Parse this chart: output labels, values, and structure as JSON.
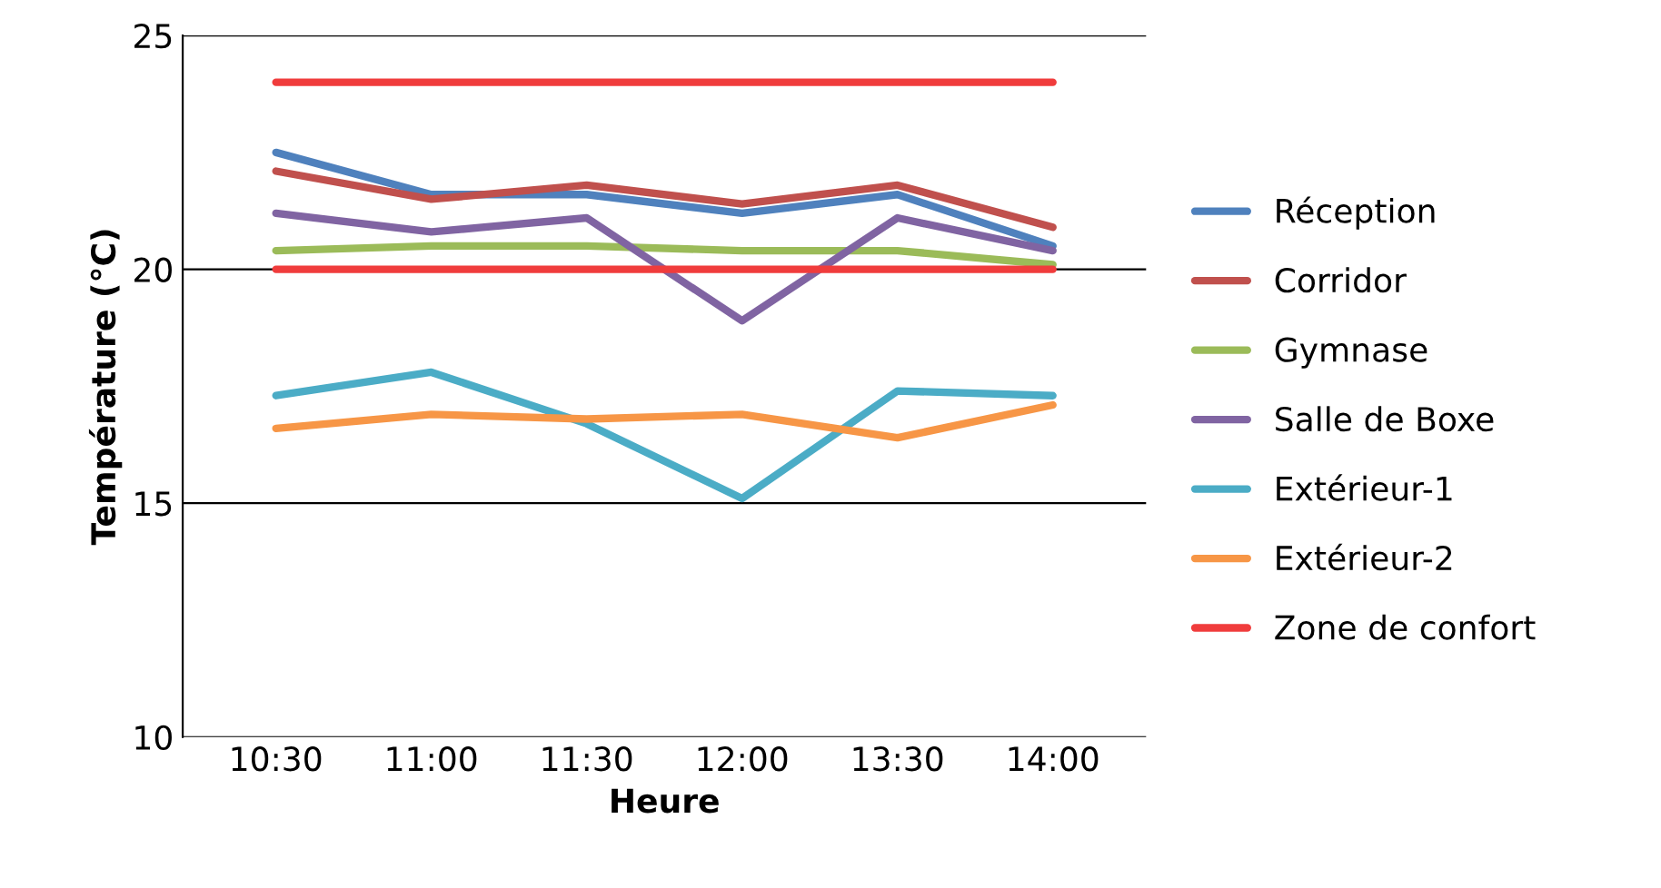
{
  "chart_data": {
    "type": "line",
    "xlabel": "Heure",
    "ylabel": "Température (°C)",
    "categories": [
      "10:30",
      "11:00",
      "11:30",
      "12:00",
      "13:30",
      "14:00"
    ],
    "ylim": [
      10,
      25
    ],
    "yticks": [
      10,
      15,
      20,
      25
    ],
    "grid": "y",
    "legend": "right",
    "line_style": "solid",
    "series": [
      {
        "name": "Réception",
        "color": "#4f81bd",
        "values": [
          22.5,
          21.6,
          21.6,
          21.2,
          21.6,
          20.5
        ]
      },
      {
        "name": "Corridor",
        "color": "#c0504d",
        "values": [
          22.1,
          21.5,
          21.8,
          21.4,
          21.8,
          20.9
        ]
      },
      {
        "name": "Gymnase",
        "color": "#9bbb59",
        "values": [
          20.4,
          20.5,
          20.5,
          20.4,
          20.4,
          20.1
        ]
      },
      {
        "name": "Salle de Boxe",
        "color": "#8064a2",
        "values": [
          21.2,
          20.8,
          21.1,
          18.9,
          21.1,
          20.4
        ]
      },
      {
        "name": "Extérieur-1",
        "color": "#4bacc6",
        "values": [
          17.3,
          17.8,
          16.7,
          15.1,
          17.4,
          17.3
        ]
      },
      {
        "name": "Extérieur-2",
        "color": "#f79646",
        "values": [
          16.6,
          16.9,
          16.8,
          16.9,
          16.4,
          17.1
        ]
      },
      {
        "name": "Zone de confort",
        "color": "#f03c3c",
        "values": [
          24,
          24,
          24,
          24,
          24,
          24
        ]
      },
      {
        "color": "#f03c3c",
        "values": [
          20,
          20,
          20,
          20,
          20,
          20
        ]
      }
    ]
  }
}
